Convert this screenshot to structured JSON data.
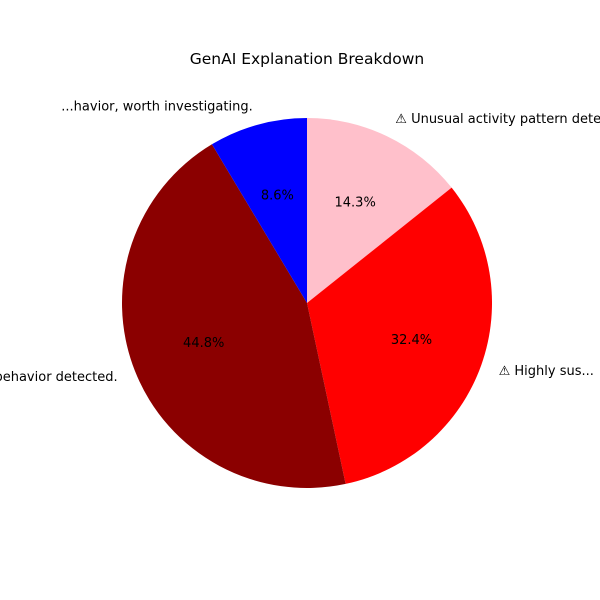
{
  "chart_data": {
    "type": "pie",
    "title": "GenAI Explanation Breakdown",
    "start_angle_deg": 90,
    "direction": "clockwise",
    "slices": [
      {
        "label": "⚠ Unusual activity pattern detected — ...",
        "value": 14.3,
        "pct_label": "14.3%",
        "color": "#FFC0CB"
      },
      {
        "label": "⚠ Highly sus...",
        "value": 32.4,
        "pct_label": "32.4%",
        "color": "#FF0000"
      },
      {
        "label": "...us behavior detected.",
        "value": 44.8,
        "pct_label": "44.8%",
        "color": "#8B0000"
      },
      {
        "label": "...havior, worth investigating.",
        "value": 8.6,
        "pct_label": "8.6%",
        "color": "#0000FF"
      }
    ]
  }
}
